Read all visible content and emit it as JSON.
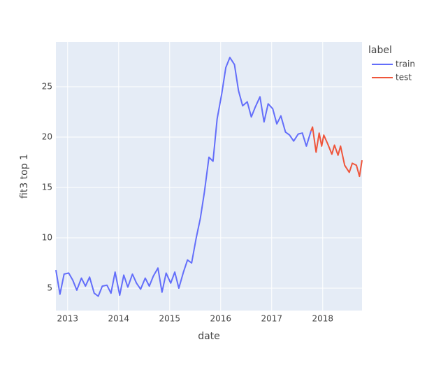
{
  "chart_data": {
    "type": "line",
    "x_label": "date",
    "y_label": "fit3 top 1",
    "legend_title": "label",
    "legend_position": "top right",
    "grid": true,
    "xlim": [
      2012.77,
      2018.77
    ],
    "xticks": [
      2013,
      2014,
      2015,
      2016,
      2017,
      2018
    ],
    "ylim": [
      2.78,
      29.44
    ],
    "yticks": [
      5,
      10,
      15,
      20,
      25
    ],
    "series": [
      {
        "name": "train",
        "color": "#636efa",
        "x": [
          2012.77,
          2012.85,
          2012.93,
          2013.02,
          2013.1,
          2013.18,
          2013.27,
          2013.35,
          2013.43,
          2013.52,
          2013.6,
          2013.68,
          2013.77,
          2013.85,
          2013.93,
          2014.02,
          2014.1,
          2014.18,
          2014.27,
          2014.35,
          2014.43,
          2014.52,
          2014.6,
          2014.68,
          2014.77,
          2014.85,
          2014.93,
          2015.02,
          2015.1,
          2015.18,
          2015.27,
          2015.35,
          2015.43,
          2015.52,
          2015.6,
          2015.68,
          2015.77,
          2015.85,
          2015.93,
          2016.02,
          2016.1,
          2016.18,
          2016.27,
          2016.35,
          2016.43,
          2016.52,
          2016.6,
          2016.68,
          2016.77,
          2016.85,
          2016.93,
          2017.02,
          2017.1,
          2017.18,
          2017.27,
          2017.35,
          2017.43,
          2017.52,
          2017.6,
          2017.68,
          2017.77
        ],
        "values": [
          6.8,
          4.4,
          6.4,
          6.5,
          5.8,
          4.8,
          6.0,
          5.2,
          6.1,
          4.5,
          4.2,
          5.2,
          5.3,
          4.5,
          6.6,
          4.3,
          6.3,
          5.1,
          6.4,
          5.5,
          4.9,
          6.0,
          5.2,
          6.2,
          7.0,
          4.6,
          6.5,
          5.5,
          6.6,
          5.0,
          6.6,
          7.8,
          7.5,
          10.0,
          11.9,
          14.5,
          18.0,
          17.6,
          21.8,
          24.3,
          26.9,
          27.9,
          27.2,
          24.6,
          23.1,
          23.5,
          22.0,
          23.0,
          24.0,
          21.5,
          23.3,
          22.8,
          21.3,
          22.1,
          20.5,
          20.2,
          19.6,
          20.3,
          20.4,
          19.1,
          20.6
        ]
      },
      {
        "name": "test",
        "color": "#ef553b",
        "x": [
          2017.77,
          2017.8,
          2017.87,
          2017.93,
          2017.98,
          2018.02,
          2018.1,
          2018.18,
          2018.23,
          2018.3,
          2018.35,
          2018.43,
          2018.52,
          2018.58,
          2018.66,
          2018.72,
          2018.77
        ],
        "values": [
          20.6,
          21.0,
          18.5,
          20.4,
          19.1,
          20.2,
          19.3,
          18.3,
          19.2,
          18.2,
          19.1,
          17.2,
          16.5,
          17.4,
          17.2,
          16.1,
          17.7
        ]
      }
    ]
  }
}
